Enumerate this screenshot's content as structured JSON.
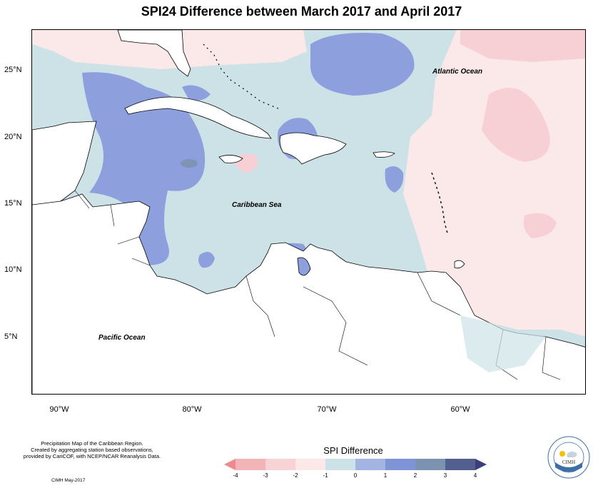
{
  "title": "SPI24 Difference between March 2017 and April 2017",
  "axes": {
    "lat_labels": [
      "25°N",
      "20°N",
      "15°N",
      "10°N",
      "5°N"
    ],
    "lon_labels": [
      "90°W",
      "80°W",
      "70°W",
      "60°W"
    ]
  },
  "ocean_labels": {
    "atlantic": "Atlantic Ocean",
    "caribbean": "Caribbean Sea",
    "pacific": "Pacific Ocean"
  },
  "footer": {
    "line1": "Precipitation Map of the Caribbean Region.",
    "line2": "Created by aggregating station based observations,",
    "line3": "provided by CariCOF, with NCEP/NCAR Reanalysis Data.",
    "credit": "CIMH May-2017"
  },
  "legend": {
    "title": "SPI Difference",
    "ticks": [
      "-4",
      "-3",
      "-2",
      "-1",
      "0",
      "1",
      "2",
      "3",
      "4"
    ],
    "colors": [
      "#f08890",
      "#f3b4b8",
      "#f7d3d5",
      "#fce8e9",
      "#cde2e7",
      "#a3b4e3",
      "#7f94d6",
      "#7b93b0",
      "#535f8f",
      "#3a3f7a"
    ]
  },
  "logo": {
    "text": "CIMH",
    "ring_text": "Caribbean Institute for Meteorology and Hydrology"
  },
  "colors": {
    "land": "#ffffff",
    "neutral": "#cde2e7",
    "wet_light": "#9aa8e0",
    "wet_mid": "#8c9fc5",
    "dry_light": "#fbe9ea",
    "dry_mid": "#f7d0d6"
  }
}
